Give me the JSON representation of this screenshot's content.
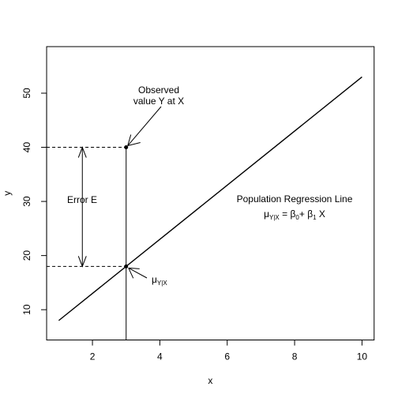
{
  "chart_data": {
    "type": "line",
    "title": "",
    "xlabel": "x",
    "ylabel": "y",
    "xlim": [
      0.64,
      10.36
    ],
    "ylim": [
      4.4,
      58.6
    ],
    "x_ticks": [
      2,
      4,
      6,
      8,
      10
    ],
    "x_tick_labels": [
      "2",
      "4",
      "6",
      "8",
      "10"
    ],
    "y_ticks": [
      10,
      20,
      30,
      40,
      50
    ],
    "y_tick_labels": [
      "10",
      "20",
      "30",
      "40",
      "50"
    ],
    "grid": false,
    "legend": "none",
    "series": [
      {
        "name": "",
        "x": [
          1,
          10
        ],
        "y": [
          8,
          53
        ],
        "style": "solid"
      }
    ],
    "points": [
      {
        "x": 3,
        "y": 40
      },
      {
        "x": 3,
        "y": 18
      }
    ],
    "reference_lines": {
      "vertical_at_x": 3,
      "dashed_horizontal_at_y": [
        40,
        18
      ],
      "error_arrow_x": 1.7
    },
    "annotations": {
      "observed_line1": "Observed",
      "observed_line2": "value Y at X",
      "error_label": "Error E",
      "population_line": "Population Regression Line",
      "mu_symbol": "μ",
      "mu_subscript": "Y|X",
      "beta_symbol": "β",
      "beta0_subscript": "0",
      "beta1_subscript": "1",
      "equals": "=",
      "plus": "+",
      "X_var": "X"
    }
  }
}
